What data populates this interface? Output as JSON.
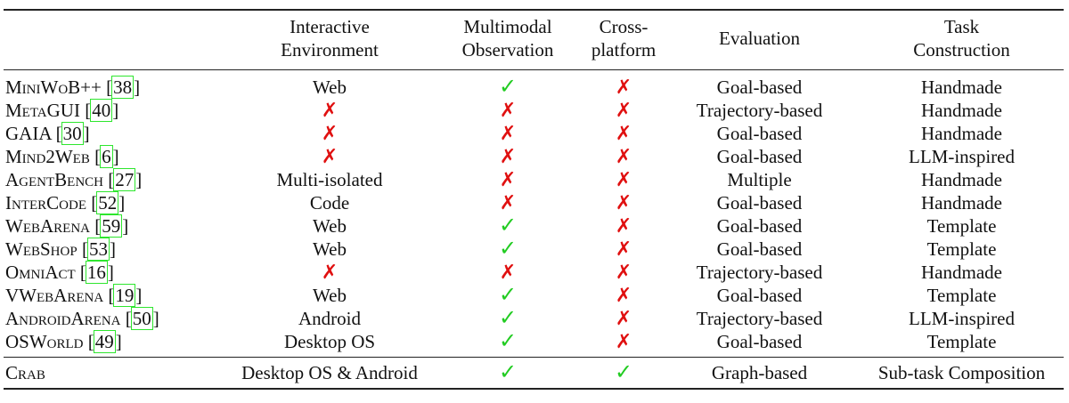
{
  "headers": [
    "",
    "Interactive\nEnvironment",
    "Multimodal\nObservation",
    "Cross-\nplatform",
    "Evaluation",
    "Task\nConstruction"
  ],
  "rows": [
    {
      "name": "MiniWoB++",
      "cite": "38",
      "env": "Web",
      "multimodal": "✓",
      "cross": "✗",
      "eval": "Goal-based",
      "task": "Handmade"
    },
    {
      "name": "MetaGUI",
      "cite": "40",
      "env": "✗",
      "multimodal": "✗",
      "cross": "✗",
      "eval": "Trajectory-based",
      "task": "Handmade"
    },
    {
      "name": "GAIA",
      "cite": "30",
      "env": "✗",
      "multimodal": "✗",
      "cross": "✗",
      "eval": "Goal-based",
      "task": "Handmade"
    },
    {
      "name": "Mind2Web",
      "cite": "6",
      "env": "✗",
      "multimodal": "✗",
      "cross": "✗",
      "eval": "Goal-based",
      "task": "LLM-inspired"
    },
    {
      "name": "AgentBench",
      "cite": "27",
      "env": "Multi-isolated",
      "multimodal": "✗",
      "cross": "✗",
      "eval": "Multiple",
      "task": "Handmade"
    },
    {
      "name": "InterCode",
      "cite": "52",
      "env": "Code",
      "multimodal": "✗",
      "cross": "✗",
      "eval": "Goal-based",
      "task": "Handmade"
    },
    {
      "name": "WebArena",
      "cite": "59",
      "env": "Web",
      "multimodal": "✓",
      "cross": "✗",
      "eval": "Goal-based",
      "task": "Template"
    },
    {
      "name": "WebShop",
      "cite": "53",
      "env": "Web",
      "multimodal": "✓",
      "cross": "✗",
      "eval": "Goal-based",
      "task": "Template"
    },
    {
      "name": "OmniAct",
      "cite": "16",
      "env": "✗",
      "multimodal": "✗",
      "cross": "✗",
      "eval": "Trajectory-based",
      "task": "Handmade"
    },
    {
      "name": "VWebArena",
      "cite": "19",
      "env": "Web",
      "multimodal": "✓",
      "cross": "✗",
      "eval": "Goal-based",
      "task": "Template"
    },
    {
      "name": "AndroidArena",
      "cite": "50",
      "env": "Android",
      "multimodal": "✓",
      "cross": "✗",
      "eval": "Trajectory-based",
      "task": "LLM-inspired"
    },
    {
      "name": "OSWorld",
      "cite": "49",
      "env": "Desktop OS",
      "multimodal": "✓",
      "cross": "✗",
      "eval": "Goal-based",
      "task": "Template"
    }
  ],
  "ours": {
    "name": "Crab",
    "env": "Desktop OS & Android",
    "multimodal": "✓",
    "cross": "✓",
    "eval": "Graph-based",
    "task": "Sub-task Composition"
  },
  "colors": {
    "check": "#22cc22",
    "cross": "#e01010",
    "citation_box": "#2ee62e"
  }
}
